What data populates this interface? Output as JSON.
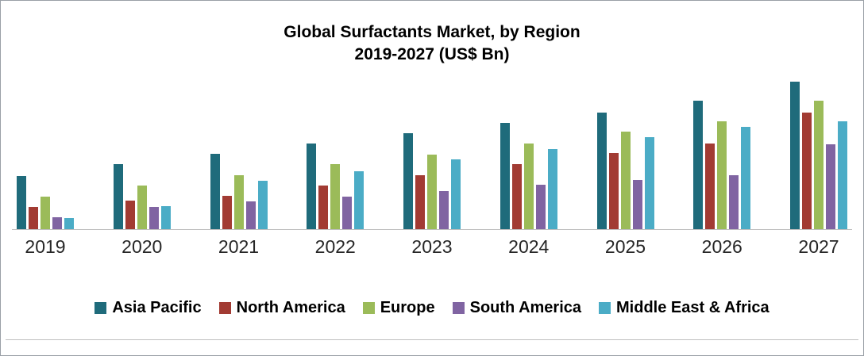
{
  "chart_data": {
    "type": "bar",
    "title_line1": "Global Surfactants Market, by Region",
    "title_line2": "2019-2027 (US$ Bn)",
    "xlabel": "",
    "ylabel": "US$ Bn",
    "ylim": [
      0,
      31
    ],
    "grid": false,
    "legend_position": "bottom",
    "categories": [
      "2019",
      "2020",
      "2021",
      "2022",
      "2023",
      "2024",
      "2025",
      "2026",
      "2027"
    ],
    "series": [
      {
        "name": "Asia Pacific",
        "color": "#1F6B7B",
        "values": [
          10.8,
          13.3,
          15.3,
          17.5,
          19.5,
          21.7,
          23.8,
          26.2,
          30.0
        ]
      },
      {
        "name": "North America",
        "color": "#A23B33",
        "values": [
          4.5,
          5.8,
          6.8,
          8.8,
          11.0,
          13.2,
          15.5,
          17.5,
          23.8
        ]
      },
      {
        "name": "Europe",
        "color": "#9BBB59",
        "values": [
          6.7,
          8.8,
          11.0,
          13.2,
          15.2,
          17.5,
          19.8,
          22.0,
          26.2
        ]
      },
      {
        "name": "South America",
        "color": "#8064A2",
        "values": [
          2.5,
          4.5,
          5.7,
          6.7,
          7.8,
          9.0,
          10.0,
          11.0,
          17.3
        ]
      },
      {
        "name": "Middle East & Africa",
        "color": "#4BACC6",
        "values": [
          2.2,
          4.7,
          9.8,
          11.8,
          14.2,
          16.3,
          18.8,
          20.8,
          22.0
        ]
      }
    ]
  }
}
